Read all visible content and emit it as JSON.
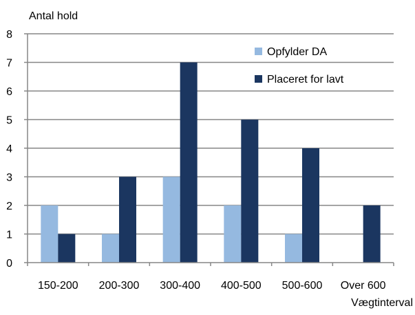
{
  "chart_data": {
    "type": "bar",
    "title": "",
    "ylabel": "Antal hold",
    "xlabel": "Vægtinterval",
    "categories": [
      "150-200",
      "200-300",
      "300-400",
      "400-500",
      "500-600",
      "Over 600"
    ],
    "series": [
      {
        "name": "Opfylder DA",
        "values": [
          2,
          1,
          3,
          2,
          1,
          0
        ],
        "color": "#95B9E0"
      },
      {
        "name": "Placeret for lavt",
        "values": [
          1,
          3,
          7,
          5,
          4,
          2
        ],
        "color": "#1B3660"
      }
    ],
    "ylim": [
      0,
      8
    ],
    "yticks": [
      0,
      1,
      2,
      3,
      4,
      5,
      6,
      7,
      8
    ],
    "grid": true,
    "legend_position": "top-right",
    "colors": {
      "grid": "#868686",
      "axis": "#868686",
      "text": "#000000"
    }
  }
}
